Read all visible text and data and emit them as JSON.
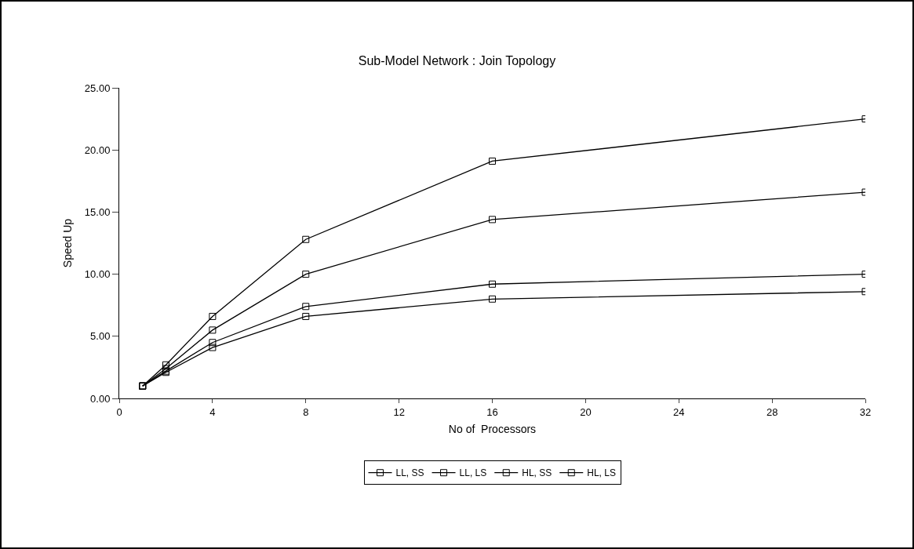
{
  "chart_data": {
    "type": "line",
    "title": "Sub-Model Network : Join Topology",
    "xlabel": "No of  Processors",
    "ylabel": "Speed Up",
    "x": [
      1,
      2,
      4,
      8,
      16,
      32
    ],
    "series": [
      {
        "name": "LL, SS",
        "color": "#000000",
        "values": [
          1.0,
          2.1,
          4.1,
          6.6,
          8.0,
          8.6
        ]
      },
      {
        "name": "LL, LS",
        "color": "#000000",
        "values": [
          1.0,
          2.4,
          5.5,
          10.0,
          14.4,
          16.6
        ]
      },
      {
        "name": "HL, SS",
        "color": "#000000",
        "values": [
          1.0,
          2.2,
          4.5,
          7.4,
          9.2,
          10.0
        ]
      },
      {
        "name": "HL, LS",
        "color": "#000000",
        "values": [
          1.0,
          2.7,
          6.6,
          12.8,
          19.1,
          22.5
        ]
      }
    ],
    "xlim": [
      0,
      32
    ],
    "xticks": [
      0,
      4,
      8,
      12,
      16,
      20,
      24,
      28,
      32
    ],
    "ylim": [
      0,
      25
    ],
    "yticks": [
      {
        "value": 0,
        "label": "0.00"
      },
      {
        "value": 5,
        "label": "5.00"
      },
      {
        "value": 10,
        "label": "10.00"
      },
      {
        "value": 15,
        "label": "15.00"
      },
      {
        "value": 20,
        "label": "20.00"
      },
      {
        "value": 25,
        "label": "25.00"
      }
    ],
    "grid": false,
    "legend": "bottom",
    "marker": "square",
    "line_style": "solid"
  }
}
